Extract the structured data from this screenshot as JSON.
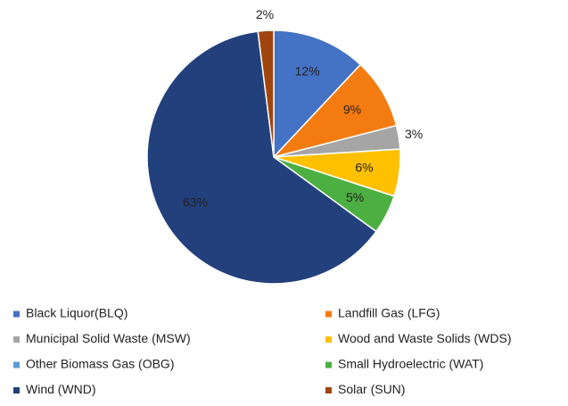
{
  "chart_data": {
    "type": "pie",
    "categories": [
      "Black Liquor(BLQ)",
      "Landfill Gas (LFG)",
      "Municipal Solid Waste (MSW)",
      "Wood and Waste Solids (WDS)",
      "Other Biomass Gas (OBG)",
      "Small Hydroelectric (WAT)",
      "Wind (WND)",
      "Solar (SUN)"
    ],
    "values": [
      12,
      9,
      3,
      6,
      0,
      5,
      63,
      2
    ],
    "value_labels": [
      "12%",
      "9%",
      "3%",
      "6%",
      null,
      "5%",
      "63%",
      "2%"
    ],
    "colors": [
      "#4472c4",
      "#f47b10",
      "#a5a5a5",
      "#ffc000",
      "#5b9bd5",
      "#4caf42",
      "#22407c",
      "#a0450e"
    ],
    "legend": "bottom"
  }
}
